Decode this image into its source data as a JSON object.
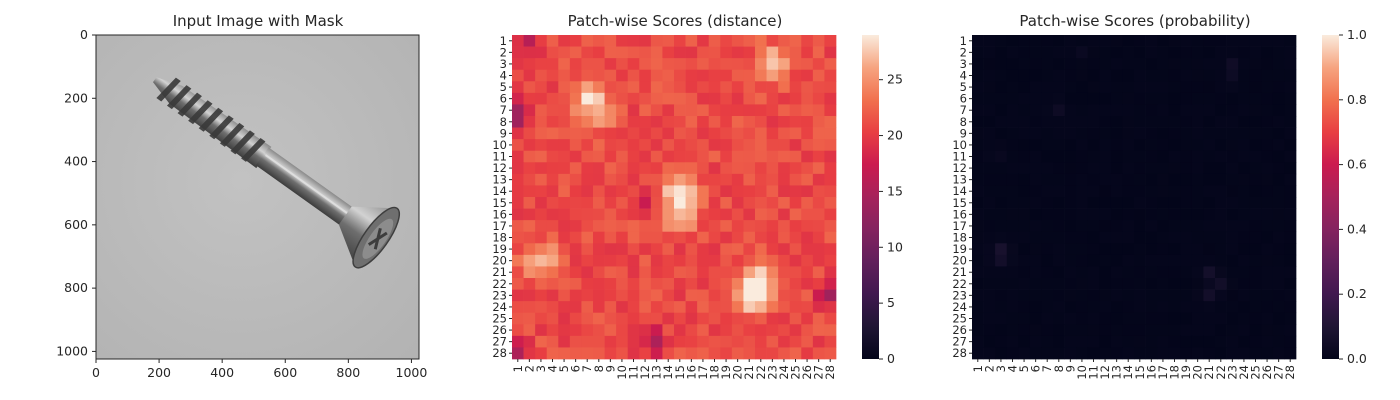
{
  "chart_data": [
    {
      "type": "image",
      "title": "Input Image with Mask",
      "xticks": [
        0,
        200,
        400,
        600,
        800,
        1000
      ],
      "yticks": [
        0,
        200,
        400,
        600,
        800,
        1000
      ],
      "xlim": [
        0,
        1024
      ],
      "ylim": [
        1024,
        0
      ],
      "image_subject": "screw on grey background",
      "background_color": "#bdbdbd"
    },
    {
      "type": "heatmap",
      "title": "Patch-wise Scores (distance)",
      "rows": 28,
      "cols": 28,
      "xticklabels": [
        "1",
        "2",
        "3",
        "4",
        "5",
        "6",
        "7",
        "8",
        "9",
        "10",
        "11",
        "12",
        "13",
        "14",
        "15",
        "16",
        "17",
        "18",
        "19",
        "20",
        "21",
        "22",
        "23",
        "24",
        "25",
        "26",
        "27",
        "28"
      ],
      "yticklabels": [
        "1",
        "2",
        "3",
        "4",
        "5",
        "6",
        "7",
        "8",
        "9",
        "10",
        "11",
        "12",
        "13",
        "14",
        "15",
        "16",
        "17",
        "18",
        "19",
        "20",
        "21",
        "22",
        "23",
        "24",
        "25",
        "26",
        "27",
        "28"
      ],
      "colorbar": {
        "ticks": [
          0,
          5,
          10,
          15,
          20,
          25
        ],
        "range": [
          0,
          29
        ],
        "colormap": "rocket"
      },
      "value_range_observed": [
        14,
        29
      ],
      "hotspots": [
        {
          "row": 3,
          "col": 23,
          "value": 28
        },
        {
          "row": 14,
          "col": 15,
          "value": 28
        },
        {
          "row": 16,
          "col": 15,
          "value": 27
        },
        {
          "row": 20,
          "col": 3,
          "value": 28
        },
        {
          "row": 22,
          "col": 22,
          "value": 29
        },
        {
          "row": 23,
          "col": 21,
          "value": 28
        },
        {
          "row": 6,
          "col": 7,
          "value": 26
        },
        {
          "row": 7,
          "col": 8,
          "value": 26
        }
      ],
      "lowspots": [
        {
          "row": 7,
          "col": 1,
          "value": 14
        },
        {
          "row": 8,
          "col": 1,
          "value": 15
        },
        {
          "row": 27,
          "col": 13,
          "value": 14
        },
        {
          "row": 23,
          "col": 28,
          "value": 14
        },
        {
          "row": 28,
          "col": 1,
          "value": 15
        },
        {
          "row": 1,
          "col": 2,
          "value": 16
        },
        {
          "row": 15,
          "col": 12,
          "value": 16
        }
      ]
    },
    {
      "type": "heatmap",
      "title": "Patch-wise Scores (probability)",
      "rows": 28,
      "cols": 28,
      "xticklabels": [
        "1",
        "2",
        "3",
        "4",
        "5",
        "6",
        "7",
        "8",
        "9",
        "10",
        "11",
        "12",
        "13",
        "14",
        "15",
        "16",
        "17",
        "18",
        "19",
        "20",
        "21",
        "22",
        "23",
        "24",
        "25",
        "26",
        "27",
        "28"
      ],
      "yticklabels": [
        "1",
        "2",
        "3",
        "4",
        "5",
        "6",
        "7",
        "8",
        "9",
        "10",
        "11",
        "12",
        "13",
        "14",
        "15",
        "16",
        "17",
        "18",
        "19",
        "20",
        "21",
        "22",
        "23",
        "24",
        "25",
        "26",
        "27",
        "28"
      ],
      "colorbar": {
        "ticks": [
          "0.0",
          "0.2",
          "0.4",
          "0.6",
          "0.8",
          "1.0"
        ],
        "range": [
          0,
          1
        ],
        "colormap": "rocket"
      },
      "baseline_value": 0.0,
      "hotspots": [
        {
          "row": 19,
          "col": 3,
          "value": 0.06
        },
        {
          "row": 20,
          "col": 3,
          "value": 0.05
        },
        {
          "row": 21,
          "col": 21,
          "value": 0.06
        },
        {
          "row": 22,
          "col": 22,
          "value": 0.05
        },
        {
          "row": 23,
          "col": 21,
          "value": 0.05
        },
        {
          "row": 3,
          "col": 23,
          "value": 0.04
        },
        {
          "row": 4,
          "col": 23,
          "value": 0.03
        },
        {
          "row": 7,
          "col": 8,
          "value": 0.03
        },
        {
          "row": 2,
          "col": 10,
          "value": 0.02
        },
        {
          "row": 11,
          "col": 3,
          "value": 0.02
        }
      ]
    }
  ]
}
